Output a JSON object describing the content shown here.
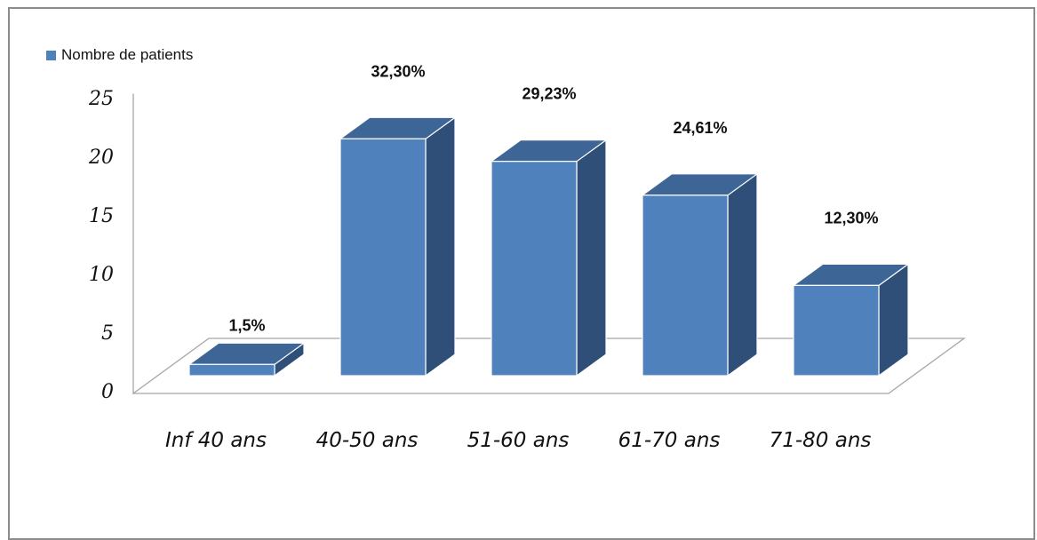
{
  "chart_data": {
    "type": "bar",
    "title": "",
    "xlabel": "",
    "ylabel": "",
    "categories": [
      "Inf 40 ans",
      "40-50 ans",
      "51-60 ans",
      "61-70 ans",
      "71-80 ans"
    ],
    "series": [
      {
        "name": "Nombre de patients",
        "values": [
          1,
          21,
          19,
          16,
          8
        ],
        "data_labels": [
          "1,5%",
          "32,30%",
          "29,23%",
          "24,61%",
          "12,30%"
        ]
      }
    ],
    "y_ticks": [
      "0",
      "5",
      "10",
      "15",
      "20",
      "25"
    ],
    "ylim": [
      0,
      25
    ],
    "grid": false,
    "legend_position": "top-left",
    "three_d": true,
    "colors": {
      "bar_front": "#4f81bd",
      "bar_side": "#2f4f79",
      "bar_top": "#3d6596",
      "bar_edge": "#ffffff",
      "floor_line": "#a6a6a6"
    }
  }
}
